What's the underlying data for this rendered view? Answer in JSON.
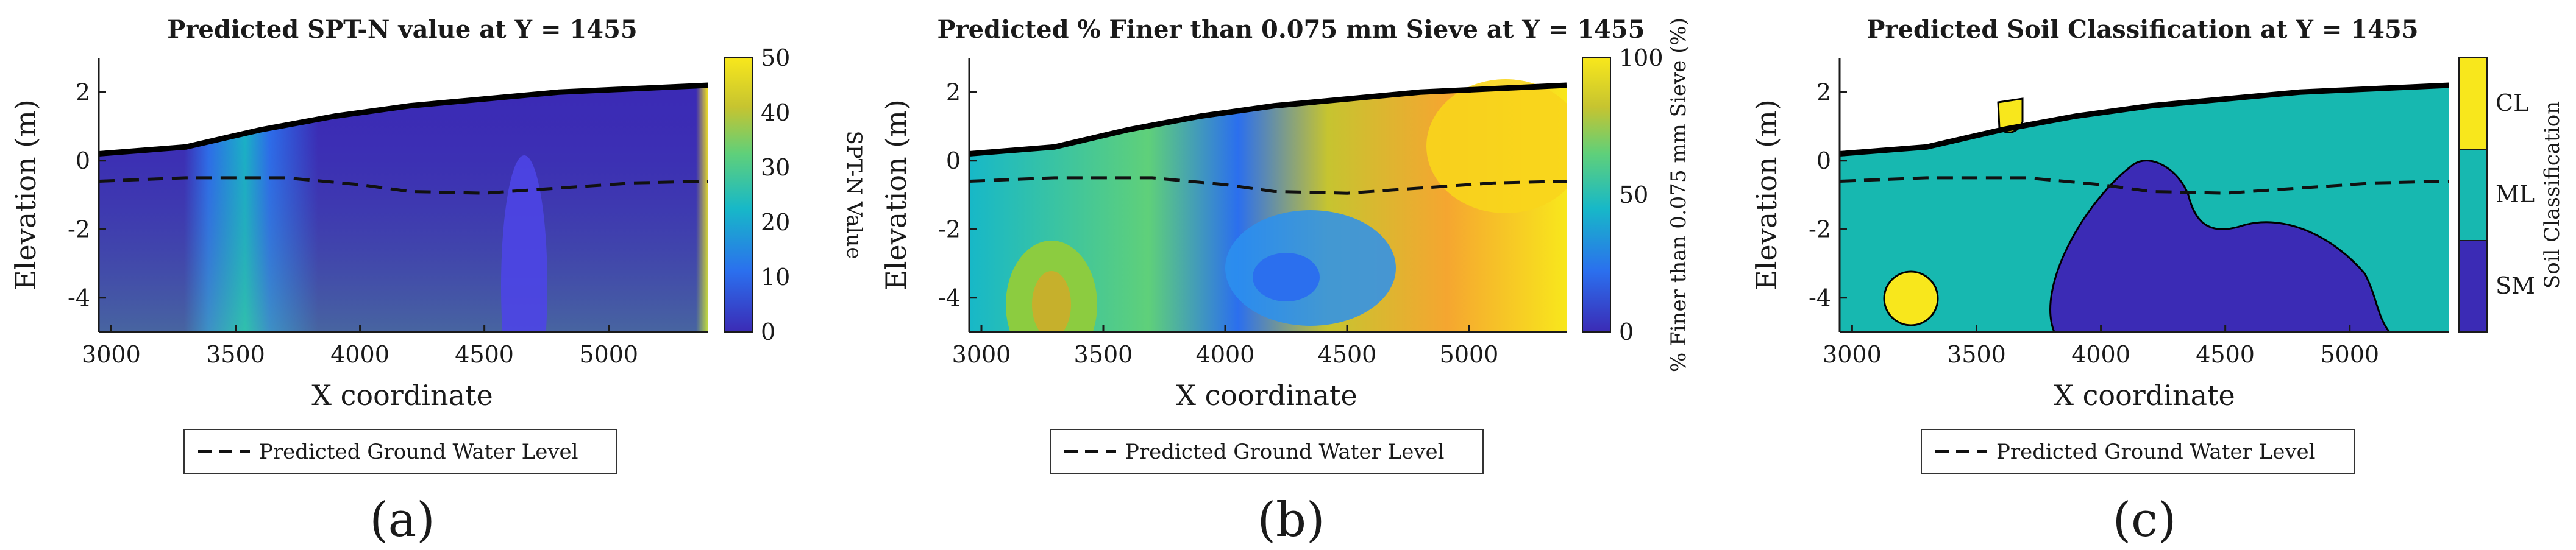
{
  "chart_data": [
    {
      "id": "a",
      "type": "heatmap",
      "subfigure_label": "(a)",
      "title": "Predicted SPT-N value at Y = 1455",
      "xlabel": "X coordinate",
      "ylabel": "Elevation (m)",
      "xlim": [
        2950,
        5400
      ],
      "ylim": [
        -5,
        3
      ],
      "xticks": [
        3000,
        3500,
        4000,
        4500,
        5000
      ],
      "yticks": [
        2,
        0,
        -2,
        -4
      ],
      "colorbar": {
        "label": "SPT-N Value",
        "range": [
          0,
          50
        ],
        "ticks": [
          50,
          40,
          30,
          20,
          10,
          0
        ],
        "colors": [
          "#3b2bb5",
          "#2b6fee",
          "#17b8c8",
          "#5fd07a",
          "#c6c430",
          "#f8e71c"
        ]
      },
      "ground_surface": {
        "x": [
          2950,
          3300,
          3600,
          3900,
          4200,
          4500,
          4800,
          5100,
          5400
        ],
        "y": [
          0.2,
          0.4,
          0.9,
          1.3,
          1.6,
          1.8,
          2.0,
          2.1,
          2.2
        ]
      },
      "legend": {
        "entries": [
          "Predicted Ground Water Level"
        ],
        "location": "below"
      }
    },
    {
      "id": "b",
      "type": "heatmap",
      "subfigure_label": "(b)",
      "title": "Predicted % Finer than 0.075 mm Sieve at Y = 1455",
      "xlabel": "X coordinate",
      "ylabel": "Elevation (m)",
      "xlim": [
        2950,
        5400
      ],
      "ylim": [
        -5,
        3
      ],
      "xticks": [
        3000,
        3500,
        4000,
        4500,
        5000
      ],
      "yticks": [
        2,
        0,
        -2,
        -4
      ],
      "colorbar": {
        "label": "% Finer than 0.075 mm Sieve (%)",
        "range": [
          0,
          100
        ],
        "ticks": [
          100,
          50,
          0
        ],
        "colors": [
          "#3b2bb5",
          "#2b6fee",
          "#17b8c8",
          "#5fd07a",
          "#c6c430",
          "#f8e71c"
        ]
      },
      "ground_surface": {
        "x": [
          2950,
          3300,
          3600,
          3900,
          4200,
          4500,
          4800,
          5100,
          5400
        ],
        "y": [
          0.2,
          0.4,
          0.9,
          1.3,
          1.6,
          1.8,
          2.0,
          2.1,
          2.2
        ]
      },
      "legend": {
        "entries": [
          "Predicted Ground Water Level"
        ],
        "location": "below"
      }
    },
    {
      "id": "c",
      "type": "heatmap",
      "subfigure_label": "(c)",
      "title": "Predicted Soil Classification at Y = 1455",
      "xlabel": "X coordinate",
      "ylabel": "Elevation (m)",
      "xlim": [
        2950,
        5400
      ],
      "ylim": [
        -5,
        3
      ],
      "xticks": [
        3000,
        3500,
        4000,
        4500,
        5000
      ],
      "yticks": [
        2,
        0,
        -2,
        -4
      ],
      "colorbar": {
        "label": "Soil Classification",
        "categories": [
          "CL",
          "ML",
          "SM"
        ],
        "colors": [
          "#f8e71c",
          "#17b8b0",
          "#3b2bb5"
        ]
      },
      "ground_surface": {
        "x": [
          2950,
          3300,
          3600,
          3900,
          4200,
          4500,
          4800,
          5100,
          5400
        ],
        "y": [
          0.2,
          0.4,
          0.9,
          1.3,
          1.6,
          1.8,
          2.0,
          2.1,
          2.2
        ]
      },
      "legend": {
        "entries": [
          "Predicted Ground Water Level"
        ],
        "location": "below"
      }
    }
  ],
  "water_level": {
    "x": [
      2950,
      3300,
      3700,
      4000,
      4200,
      4500,
      4800,
      5100,
      5400
    ],
    "y": [
      -0.6,
      -0.5,
      -0.5,
      -0.7,
      -0.9,
      -0.95,
      -0.8,
      -0.65,
      -0.6
    ]
  },
  "colors": {
    "axis": "#1a1a1a",
    "surface": "#000000",
    "water": "#111111",
    "background": "#ffffff"
  }
}
